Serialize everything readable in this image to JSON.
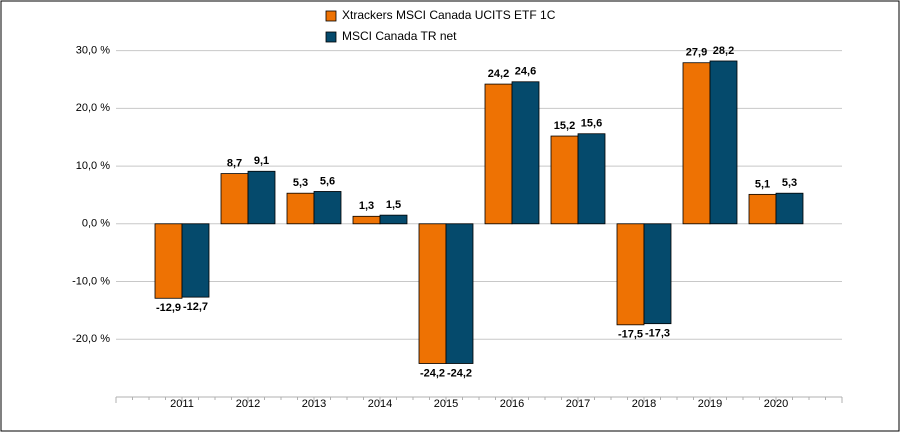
{
  "chart_data": {
    "type": "bar",
    "categories": [
      "2011",
      "2012",
      "2013",
      "2014",
      "2015",
      "2016",
      "2017",
      "2018",
      "2019",
      "2020"
    ],
    "series": [
      {
        "name": "Xtrackers MSCI Canada UCITS ETF  1C",
        "color": "#ee7203",
        "values": [
          -12.9,
          8.7,
          5.3,
          1.3,
          -24.2,
          24.2,
          15.2,
          -17.5,
          27.9,
          5.1
        ],
        "value_labels": [
          "-12,9",
          "8,7",
          "5,3",
          "1,3",
          "-24,2",
          "24,2",
          "15,2",
          "-17,5",
          "27,9",
          "5,1"
        ]
      },
      {
        "name": "MSCI Canada TR net",
        "color": "#054a6c",
        "values": [
          -12.7,
          9.1,
          5.6,
          1.5,
          -24.2,
          24.6,
          15.6,
          -17.3,
          28.2,
          5.3
        ],
        "value_labels": [
          "-12,7",
          "9,1",
          "5,6",
          "1,5",
          "-24,2",
          "24,6",
          "15,6",
          "-17,3",
          "28,2",
          "5,3"
        ]
      }
    ],
    "ylim": [
      -30,
      30
    ],
    "yticks": [
      {
        "value": -20,
        "label": "-20,0 %"
      },
      {
        "value": -10,
        "label": "-10,0 %"
      },
      {
        "value": 0,
        "label": "0,0 %"
      },
      {
        "value": 10,
        "label": "10,0 %"
      },
      {
        "value": 20,
        "label": "20,0 %"
      },
      {
        "value": 30,
        "label": "30,0 %"
      }
    ],
    "grid": true
  }
}
